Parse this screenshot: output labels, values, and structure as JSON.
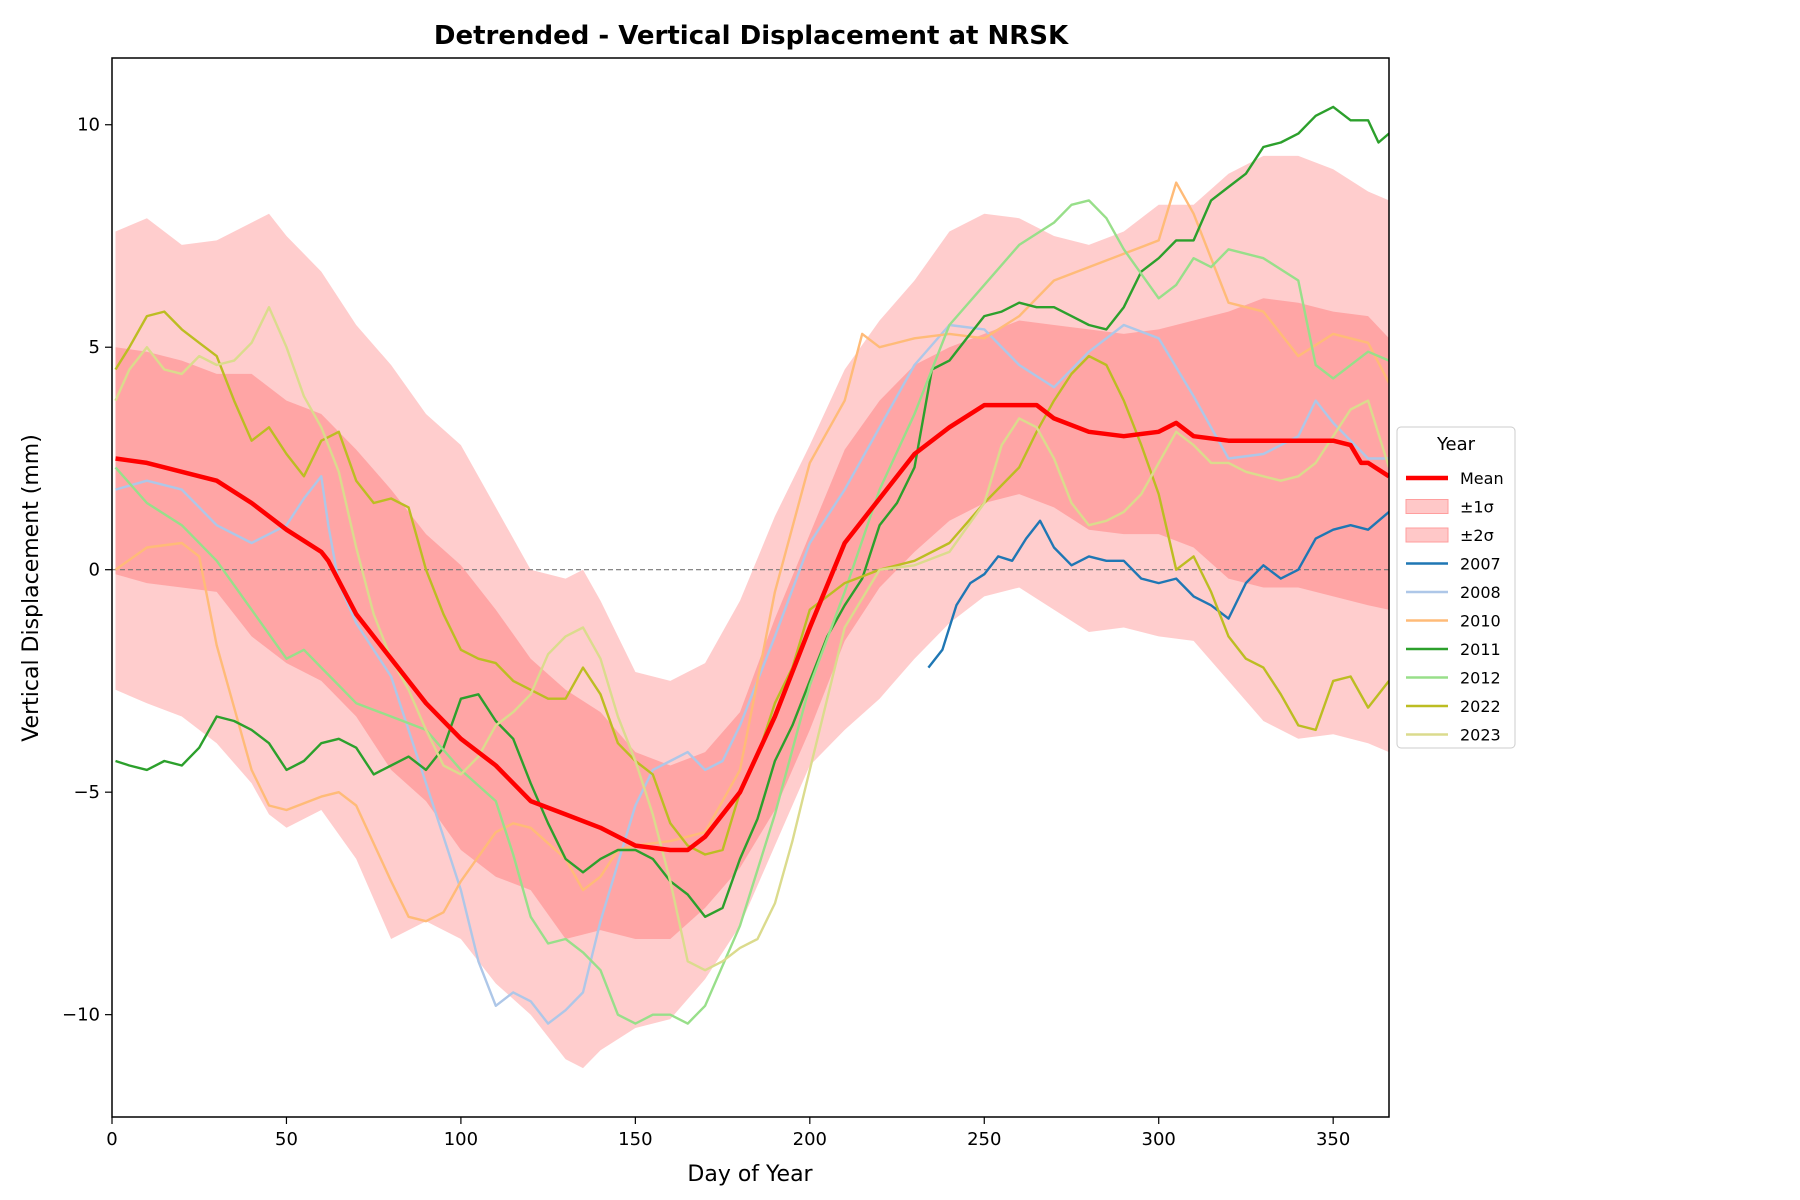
{
  "chart_data": {
    "type": "line",
    "title": "Detrended - Vertical Displacement at NRSK",
    "xlabel": "Day of Year",
    "ylabel": "Vertical Displacement (mm)",
    "xlim": [
      0,
      366
    ],
    "ylim": [
      -12.3,
      11.5
    ],
    "xticks": [
      0,
      50,
      100,
      150,
      200,
      250,
      300,
      350
    ],
    "yticks": [
      -10,
      -5,
      0,
      5,
      10
    ],
    "ytick_labels": [
      "−10",
      "−5",
      "0",
      "5",
      "10"
    ],
    "zero_line": true,
    "grid": false,
    "legend": {
      "title": "Year",
      "placement": "center-right-outside",
      "entries": [
        "Mean",
        "±1σ",
        "±2σ",
        "2007",
        "2008",
        "2010",
        "2011",
        "2012",
        "2022",
        "2023"
      ]
    },
    "mean": {
      "name": "Mean",
      "color": "#ff0000",
      "x": [
        1,
        10,
        20,
        30,
        40,
        50,
        60,
        62,
        70,
        80,
        90,
        100,
        110,
        120,
        130,
        140,
        150,
        160,
        165,
        170,
        180,
        190,
        200,
        210,
        220,
        230,
        240,
        250,
        260,
        265,
        270,
        280,
        290,
        300,
        305,
        310,
        320,
        330,
        340,
        350,
        355,
        358,
        360,
        366
      ],
      "y": [
        2.5,
        2.4,
        2.2,
        2.0,
        1.5,
        0.9,
        0.4,
        0.2,
        -1.0,
        -2.0,
        -3.0,
        -3.8,
        -4.4,
        -5.2,
        -5.5,
        -5.8,
        -6.2,
        -6.3,
        -6.3,
        -6.0,
        -5.0,
        -3.3,
        -1.3,
        0.6,
        1.6,
        2.6,
        3.2,
        3.7,
        3.7,
        3.7,
        3.4,
        3.1,
        3.0,
        3.1,
        3.3,
        3.0,
        2.9,
        2.9,
        2.9,
        2.9,
        2.8,
        2.4,
        2.4,
        2.1
      ]
    },
    "sigma1": {
      "name": "±1σ",
      "color": "#ff9e9e",
      "x": [
        1,
        10,
        20,
        30,
        40,
        50,
        60,
        70,
        80,
        90,
        100,
        110,
        120,
        130,
        140,
        150,
        160,
        170,
        180,
        190,
        200,
        210,
        220,
        230,
        240,
        250,
        260,
        270,
        280,
        290,
        300,
        310,
        320,
        330,
        340,
        350,
        360,
        366
      ],
      "upper": [
        5.0,
        4.9,
        4.7,
        4.4,
        4.4,
        3.8,
        3.5,
        2.7,
        1.8,
        0.8,
        0.1,
        -0.9,
        -2.0,
        -2.7,
        -3.2,
        -4.1,
        -4.4,
        -4.1,
        -3.2,
        -1.1,
        0.8,
        2.7,
        3.8,
        4.6,
        5.0,
        5.3,
        5.6,
        5.5,
        5.4,
        5.3,
        5.4,
        5.6,
        5.8,
        6.1,
        6.0,
        5.8,
        5.7,
        5.2
      ],
      "lower": [
        -0.1,
        -0.3,
        -0.4,
        -0.5,
        -1.5,
        -2.1,
        -2.5,
        -3.3,
        -4.5,
        -5.2,
        -6.3,
        -6.9,
        -7.2,
        -8.3,
        -8.1,
        -8.3,
        -8.3,
        -7.6,
        -6.7,
        -5.4,
        -3.6,
        -1.6,
        -0.4,
        0.4,
        1.1,
        1.5,
        1.7,
        1.4,
        0.9,
        0.8,
        0.8,
        0.5,
        -0.2,
        -0.4,
        -0.4,
        -0.6,
        -0.8,
        -0.9
      ]
    },
    "sigma2": {
      "name": "±2σ",
      "color": "#ffc8c8",
      "x": [
        1,
        10,
        20,
        30,
        40,
        45,
        50,
        60,
        70,
        80,
        90,
        100,
        110,
        120,
        130,
        135,
        140,
        150,
        160,
        170,
        180,
        190,
        200,
        210,
        220,
        230,
        240,
        250,
        260,
        270,
        280,
        290,
        300,
        310,
        320,
        330,
        340,
        350,
        360,
        366
      ],
      "upper": [
        7.6,
        7.9,
        7.3,
        7.4,
        7.8,
        8.0,
        7.5,
        6.7,
        5.5,
        4.6,
        3.5,
        2.8,
        1.4,
        0.0,
        -0.2,
        0.0,
        -0.7,
        -2.3,
        -2.5,
        -2.1,
        -0.7,
        1.2,
        2.8,
        4.5,
        5.6,
        6.5,
        7.6,
        8.0,
        7.9,
        7.5,
        7.3,
        7.6,
        8.2,
        8.2,
        8.9,
        9.3,
        9.3,
        9.0,
        8.5,
        8.3
      ],
      "lower": [
        -2.7,
        -3.0,
        -3.3,
        -3.9,
        -4.8,
        -5.5,
        -5.8,
        -5.4,
        -6.5,
        -8.3,
        -7.9,
        -8.3,
        -9.3,
        -10.0,
        -11.0,
        -11.2,
        -10.8,
        -10.3,
        -10.1,
        -9.2,
        -8.0,
        -6.2,
        -4.4,
        -3.6,
        -2.9,
        -2.0,
        -1.2,
        -0.6,
        -0.4,
        -0.9,
        -1.4,
        -1.3,
        -1.5,
        -1.6,
        -2.5,
        -3.4,
        -3.8,
        -3.7,
        -3.9,
        -4.1
      ]
    },
    "series": [
      {
        "name": "2007",
        "color": "#1f77b4",
        "x": [
          234,
          238,
          242,
          246,
          250,
          254,
          258,
          262,
          266,
          270,
          275,
          280,
          285,
          290,
          295,
          300,
          305,
          310,
          315,
          320,
          325,
          330,
          335,
          340,
          345,
          350,
          355,
          360,
          366
        ],
        "y": [
          -2.2,
          -1.8,
          -0.8,
          -0.3,
          -0.1,
          0.3,
          0.2,
          0.7,
          1.1,
          0.5,
          0.1,
          0.3,
          0.2,
          0.2,
          -0.2,
          -0.3,
          -0.2,
          -0.6,
          -0.8,
          -1.1,
          -0.3,
          0.1,
          -0.2,
          0.0,
          0.7,
          0.9,
          1.0,
          0.9,
          1.3
        ]
      },
      {
        "name": "2008",
        "color": "#aec7e8",
        "x": [
          1,
          10,
          20,
          30,
          40,
          50,
          55,
          60,
          62,
          65,
          70,
          80,
          90,
          100,
          105,
          110,
          115,
          120,
          125,
          130,
          135,
          140,
          145,
          150,
          155,
          160,
          165,
          170,
          175,
          180,
          190,
          200,
          210,
          220,
          230,
          240,
          250,
          260,
          270,
          280,
          290,
          300,
          310,
          320,
          330,
          340,
          345,
          350,
          360,
          366
        ],
        "y": [
          1.8,
          2.0,
          1.8,
          1.0,
          0.6,
          1.0,
          1.6,
          2.1,
          1.0,
          -0.3,
          -1.2,
          -2.4,
          -4.8,
          -7.2,
          -8.8,
          -9.8,
          -9.5,
          -9.7,
          -10.2,
          -9.9,
          -9.5,
          -7.9,
          -6.6,
          -5.3,
          -4.5,
          -4.3,
          -4.1,
          -4.5,
          -4.3,
          -3.5,
          -1.5,
          0.6,
          1.8,
          3.2,
          4.6,
          5.5,
          5.4,
          4.6,
          4.1,
          4.9,
          5.5,
          5.2,
          3.9,
          2.5,
          2.6,
          3.0,
          3.8,
          3.3,
          2.5,
          2.5
        ]
      },
      {
        "name": "2010",
        "color": "#ffbb78",
        "x": [
          1,
          10,
          20,
          25,
          30,
          40,
          45,
          50,
          60,
          65,
          70,
          80,
          85,
          90,
          95,
          100,
          110,
          115,
          120,
          130,
          135,
          140,
          145,
          150,
          160,
          170,
          180,
          190,
          200,
          210,
          215,
          220,
          230,
          240,
          250,
          260,
          270,
          280,
          290,
          300,
          305,
          310,
          320,
          330,
          340,
          350,
          360,
          366
        ],
        "y": [
          0.0,
          0.5,
          0.6,
          0.3,
          -1.7,
          -4.5,
          -5.3,
          -5.4,
          -5.1,
          -5.0,
          -5.3,
          -7.0,
          -7.8,
          -7.9,
          -7.7,
          -7.0,
          -5.9,
          -5.7,
          -5.8,
          -6.5,
          -7.2,
          -6.9,
          -6.3,
          -6.2,
          -6.1,
          -5.9,
          -4.5,
          -0.5,
          2.4,
          3.8,
          5.3,
          5.0,
          5.2,
          5.3,
          5.2,
          5.7,
          6.5,
          6.8,
          7.1,
          7.4,
          8.7,
          8.0,
          6.0,
          5.8,
          4.8,
          5.3,
          5.1,
          4.2
        ]
      },
      {
        "name": "2011",
        "color": "#2ca02c",
        "x": [
          1,
          5,
          10,
          15,
          20,
          25,
          30,
          35,
          40,
          45,
          50,
          55,
          60,
          65,
          70,
          75,
          80,
          85,
          90,
          95,
          100,
          105,
          110,
          115,
          120,
          125,
          130,
          135,
          140,
          145,
          150,
          155,
          160,
          165,
          170,
          175,
          180,
          185,
          190,
          195,
          200,
          205,
          210,
          215,
          220,
          225,
          230,
          235,
          240,
          245,
          250,
          255,
          260,
          265,
          270,
          275,
          280,
          285,
          290,
          295,
          300,
          305,
          310,
          315,
          320,
          325,
          330,
          335,
          340,
          345,
          350,
          355,
          360,
          363,
          366
        ],
        "y": [
          -4.3,
          -4.4,
          -4.5,
          -4.3,
          -4.4,
          -4.0,
          -3.3,
          -3.4,
          -3.6,
          -3.9,
          -4.5,
          -4.3,
          -3.9,
          -3.8,
          -4.0,
          -4.6,
          -4.4,
          -4.2,
          -4.5,
          -4.0,
          -2.9,
          -2.8,
          -3.4,
          -3.8,
          -4.8,
          -5.7,
          -6.5,
          -6.8,
          -6.5,
          -6.3,
          -6.3,
          -6.5,
          -7.0,
          -7.3,
          -7.8,
          -7.6,
          -6.5,
          -5.6,
          -4.3,
          -3.5,
          -2.5,
          -1.5,
          -0.8,
          -0.2,
          1.0,
          1.5,
          2.3,
          4.5,
          4.7,
          5.2,
          5.7,
          5.8,
          6.0,
          5.9,
          5.9,
          5.7,
          5.5,
          5.4,
          5.9,
          6.7,
          7.0,
          7.4,
          7.4,
          8.3,
          8.6,
          8.9,
          9.5,
          9.6,
          9.8,
          10.2,
          10.4,
          10.1,
          10.1,
          9.6,
          9.8
        ]
      },
      {
        "name": "2012",
        "color": "#98df8a",
        "x": [
          1,
          10,
          20,
          30,
          40,
          50,
          55,
          60,
          65,
          70,
          80,
          90,
          100,
          110,
          115,
          120,
          125,
          130,
          135,
          140,
          145,
          150,
          155,
          160,
          165,
          170,
          180,
          190,
          200,
          210,
          220,
          230,
          240,
          250,
          260,
          270,
          275,
          280,
          285,
          290,
          300,
          305,
          310,
          315,
          320,
          330,
          340,
          345,
          350,
          360,
          366
        ],
        "y": [
          2.3,
          1.5,
          1.0,
          0.2,
          -0.9,
          -2.0,
          -1.8,
          -2.2,
          -2.6,
          -3.0,
          -3.3,
          -3.6,
          -4.5,
          -5.2,
          -6.4,
          -7.8,
          -8.4,
          -8.3,
          -8.6,
          -9.0,
          -10.0,
          -10.2,
          -10.0,
          -10.0,
          -10.2,
          -9.8,
          -8.0,
          -5.5,
          -2.6,
          -0.5,
          1.8,
          3.5,
          5.5,
          6.4,
          7.3,
          7.8,
          8.2,
          8.3,
          7.9,
          7.2,
          6.1,
          6.4,
          7.0,
          6.8,
          7.2,
          7.0,
          6.5,
          4.6,
          4.3,
          4.9,
          4.7
        ]
      },
      {
        "name": "2022",
        "color": "#bcbd22",
        "x": [
          1,
          5,
          10,
          15,
          20,
          25,
          30,
          35,
          40,
          45,
          50,
          55,
          60,
          65,
          70,
          75,
          80,
          85,
          90,
          95,
          100,
          105,
          110,
          115,
          120,
          125,
          130,
          135,
          140,
          145,
          150,
          155,
          160,
          165,
          170,
          175,
          180,
          185,
          190,
          195,
          200,
          210,
          220,
          230,
          240,
          250,
          260,
          265,
          270,
          275,
          280,
          285,
          290,
          295,
          300,
          305,
          310,
          315,
          320,
          325,
          330,
          335,
          340,
          345,
          350,
          355,
          360,
          366
        ],
        "y": [
          4.5,
          5.0,
          5.7,
          5.8,
          5.4,
          5.1,
          4.8,
          3.8,
          2.9,
          3.2,
          2.6,
          2.1,
          2.9,
          3.1,
          2.0,
          1.5,
          1.6,
          1.4,
          0.0,
          -1.0,
          -1.8,
          -2.0,
          -2.1,
          -2.5,
          -2.7,
          -2.9,
          -2.9,
          -2.2,
          -2.8,
          -3.9,
          -4.3,
          -4.6,
          -5.7,
          -6.2,
          -6.4,
          -6.3,
          -5.0,
          -4.2,
          -3.0,
          -2.2,
          -0.9,
          -0.3,
          0.0,
          0.2,
          0.6,
          1.5,
          2.3,
          3.1,
          3.8,
          4.4,
          4.8,
          4.6,
          3.8,
          2.8,
          1.7,
          0.0,
          0.3,
          -0.5,
          -1.5,
          -2.0,
          -2.2,
          -2.8,
          -3.5,
          -3.6,
          -2.5,
          -2.4,
          -3.1,
          -2.5
        ]
      },
      {
        "name": "2023",
        "color": "#dbdb8d",
        "x": [
          1,
          5,
          10,
          15,
          20,
          25,
          30,
          35,
          40,
          45,
          50,
          55,
          60,
          65,
          70,
          75,
          80,
          85,
          90,
          95,
          100,
          105,
          110,
          115,
          120,
          125,
          130,
          135,
          140,
          145,
          150,
          155,
          160,
          165,
          170,
          175,
          180,
          185,
          190,
          195,
          200,
          210,
          220,
          230,
          240,
          250,
          255,
          260,
          265,
          270,
          275,
          280,
          285,
          290,
          295,
          300,
          305,
          310,
          315,
          320,
          325,
          330,
          335,
          340,
          345,
          350,
          355,
          360,
          366
        ],
        "y": [
          3.8,
          4.5,
          5.0,
          4.5,
          4.4,
          4.8,
          4.6,
          4.7,
          5.1,
          5.9,
          5.0,
          3.9,
          3.2,
          2.2,
          0.5,
          -1.0,
          -2.0,
          -2.7,
          -3.6,
          -4.4,
          -4.6,
          -4.2,
          -3.5,
          -3.2,
          -2.8,
          -1.9,
          -1.5,
          -1.3,
          -2.0,
          -3.3,
          -4.3,
          -5.5,
          -7.0,
          -8.8,
          -9.0,
          -8.8,
          -8.5,
          -8.3,
          -7.5,
          -6.1,
          -4.5,
          -1.3,
          0.0,
          0.1,
          0.4,
          1.5,
          2.8,
          3.4,
          3.2,
          2.5,
          1.5,
          1.0,
          1.1,
          1.3,
          1.7,
          2.4,
          3.1,
          2.8,
          2.4,
          2.4,
          2.2,
          2.1,
          2.0,
          2.1,
          2.4,
          3.0,
          3.6,
          3.8,
          2.3
        ]
      }
    ]
  }
}
